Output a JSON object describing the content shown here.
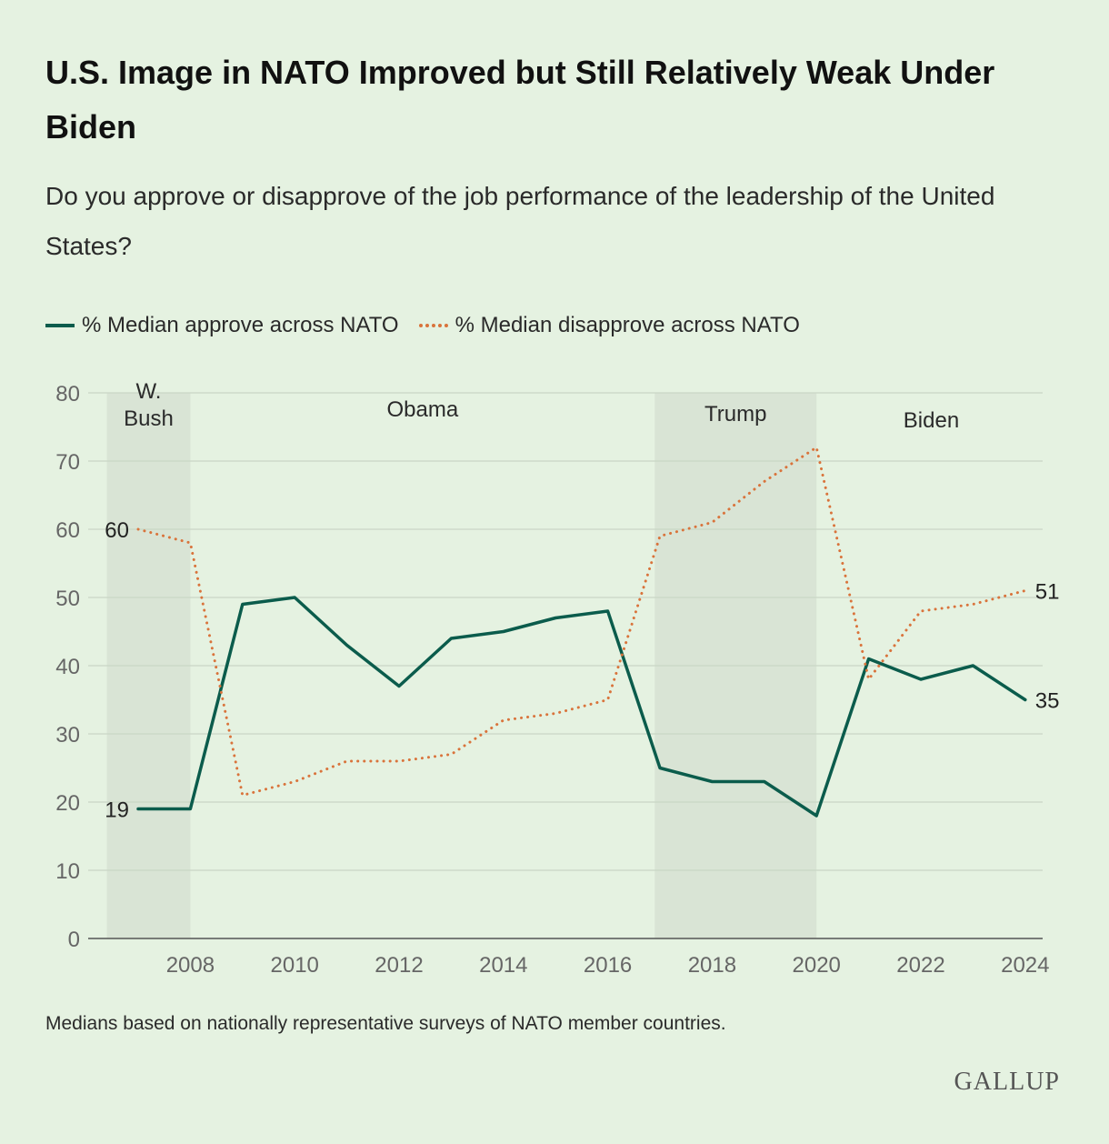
{
  "header": {
    "title": "U.S. Image in NATO Improved but Still Relatively Weak Under Biden",
    "subtitle": "Do you approve or disapprove of the job performance of the leadership of the United States?"
  },
  "footer": {
    "note": "Medians based on nationally representative surveys of NATO member countries.",
    "brand": "GALLUP"
  },
  "colors": {
    "background": "#e5f2e1",
    "approve": "#0b5c4c",
    "disapprove": "#d9733b",
    "shade": "#d9e4d5",
    "grid": "#c9d6c5"
  },
  "chart_data": {
    "type": "line",
    "title": "U.S. Image in NATO Improved but Still Relatively Weak Under Biden",
    "xlabel": "",
    "ylabel": "",
    "ylim": [
      0,
      80
    ],
    "yticks": [
      0,
      10,
      20,
      30,
      40,
      50,
      60,
      70,
      80
    ],
    "xticks": [
      2008,
      2010,
      2012,
      2014,
      2016,
      2018,
      2020,
      2022,
      2024
    ],
    "grid": true,
    "legend": "top-left",
    "x": [
      2007,
      2008,
      2009,
      2010,
      2011,
      2012,
      2013,
      2014,
      2015,
      2016,
      2017,
      2018,
      2019,
      2020,
      2021,
      2022,
      2023,
      2024
    ],
    "series": [
      {
        "name": "% Median approve across NATO",
        "style": "solid",
        "color": "#0b5c4c",
        "values": [
          19,
          19,
          49,
          50,
          43,
          37,
          44,
          45,
          47,
          48,
          25,
          23,
          23,
          18,
          41,
          38,
          40,
          35
        ]
      },
      {
        "name": "% Median disapprove across NATO",
        "style": "dotted",
        "color": "#d9733b",
        "values": [
          60,
          58,
          21,
          23,
          26,
          26,
          27,
          32,
          33,
          35,
          59,
          61,
          67,
          72,
          38,
          48,
          49,
          51
        ]
      }
    ],
    "annotations": [
      {
        "text": "19",
        "x": 2007,
        "series": 0,
        "side": "left"
      },
      {
        "text": "60",
        "x": 2007,
        "series": 1,
        "side": "left"
      },
      {
        "text": "35",
        "x": 2024,
        "series": 0,
        "side": "right"
      },
      {
        "text": "51",
        "x": 2024,
        "series": 1,
        "side": "right"
      }
    ],
    "periods": [
      {
        "label_lines": [
          "W.",
          "Bush"
        ],
        "start": 2006.4,
        "end": 2008.0,
        "shaded": true
      },
      {
        "label_lines": [
          "Obama"
        ],
        "start": 2008.0,
        "end": 2016.9,
        "shaded": false
      },
      {
        "label_lines": [
          "Trump"
        ],
        "start": 2016.9,
        "end": 2020.0,
        "shaded": true
      },
      {
        "label_lines": [
          "Biden"
        ],
        "start": 2020.0,
        "end": 2024.4,
        "shaded": false
      }
    ]
  }
}
